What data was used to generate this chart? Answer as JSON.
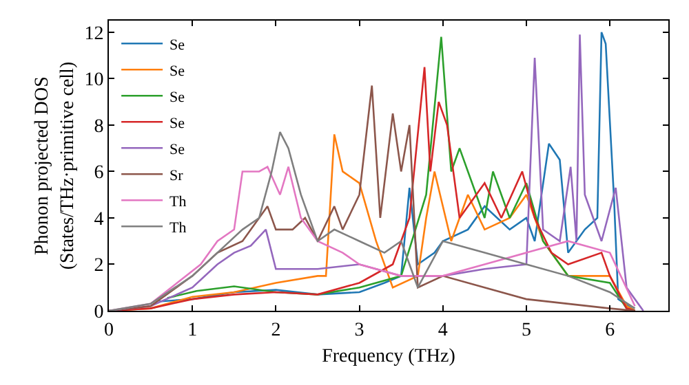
{
  "chart_data": {
    "type": "line",
    "xlabel": "Frequency (THz)",
    "ylabel": "Phonon projected DOS\n(States/THz·primitive cell)",
    "xlim": [
      0,
      6.7
    ],
    "ylim": [
      0,
      12.5
    ],
    "xticks": [
      0,
      1,
      2,
      3,
      4,
      5,
      6
    ],
    "yticks": [
      0,
      2,
      4,
      6,
      8,
      10,
      12
    ],
    "legend": "top left",
    "marker": "none",
    "line_style": "solid",
    "series": [
      {
        "name": "Se",
        "color": "#1f77b4",
        "x": [
          0.6,
          1.0,
          1.5,
          2.0,
          2.5,
          3.0,
          3.3,
          3.5,
          3.6,
          3.7,
          3.9,
          4.0,
          4.3,
          4.5,
          4.8,
          5.0,
          5.1,
          5.27,
          5.4,
          5.5,
          5.7,
          5.85,
          5.9,
          5.95,
          6.05,
          6.1,
          6.3
        ],
        "values": [
          0.4,
          0.5,
          0.8,
          0.9,
          0.7,
          0.8,
          1.2,
          1.5,
          5.3,
          2.0,
          2.5,
          3.0,
          3.5,
          4.5,
          3.5,
          4.0,
          3.0,
          7.2,
          6.5,
          2.5,
          3.5,
          4.0,
          12.0,
          11.5,
          4.8,
          0.5,
          0
        ]
      },
      {
        "name": "Se",
        "color": "#ff7f0e",
        "x": [
          0,
          0.5,
          1.0,
          1.5,
          2.0,
          2.5,
          2.6,
          2.7,
          2.8,
          3.0,
          3.2,
          3.4,
          3.7,
          3.8,
          3.9,
          4.1,
          4.3,
          4.5,
          4.8,
          5.0,
          5.2,
          5.5,
          6.0,
          6.2,
          6.3
        ],
        "values": [
          0,
          0.1,
          0.6,
          0.8,
          1.2,
          1.5,
          1.5,
          7.6,
          6.0,
          5.5,
          3.0,
          1.0,
          1.5,
          4.0,
          6.0,
          3.0,
          5.0,
          3.5,
          4.0,
          5.0,
          3.0,
          1.5,
          1.5,
          0.2,
          0
        ]
      },
      {
        "name": "Se",
        "color": "#2ca02c",
        "x": [
          0.7,
          1.05,
          1.5,
          2.0,
          2.5,
          3.0,
          3.5,
          3.8,
          3.98,
          4.1,
          4.2,
          4.5,
          4.6,
          4.8,
          5.0,
          5.2,
          5.5,
          6.0,
          6.2,
          6.3
        ],
        "values": [
          0.55,
          0.85,
          1.05,
          0.8,
          0.7,
          1.0,
          1.5,
          5.0,
          11.8,
          6.0,
          7.0,
          4.0,
          6.0,
          4.0,
          5.5,
          3.0,
          1.5,
          1.2,
          0.1,
          0
        ]
      },
      {
        "name": "Se",
        "color": "#d62728",
        "x": [
          0,
          0.5,
          1.0,
          1.5,
          2.0,
          2.5,
          3.0,
          3.4,
          3.6,
          3.78,
          3.85,
          3.95,
          4.05,
          4.2,
          4.5,
          4.7,
          4.95,
          5.1,
          5.3,
          5.5,
          5.9,
          6.0,
          6.2,
          6.3
        ],
        "values": [
          0,
          0.1,
          0.5,
          0.7,
          0.8,
          0.7,
          1.2,
          2.0,
          4.0,
          10.5,
          6.0,
          9.0,
          8.0,
          4.0,
          5.5,
          4.0,
          6.0,
          4.0,
          2.5,
          2.0,
          2.5,
          1.5,
          0.1,
          0
        ]
      },
      {
        "name": "Se",
        "color": "#9467bd",
        "x": [
          0,
          0.5,
          1.0,
          1.3,
          1.5,
          1.7,
          1.88,
          2.0,
          2.5,
          3.0,
          3.5,
          4.0,
          4.5,
          5.0,
          5.1,
          5.2,
          5.4,
          5.53,
          5.6,
          5.64,
          5.7,
          5.9,
          6.07,
          6.2,
          6.4
        ],
        "values": [
          0,
          0.2,
          1.0,
          2.0,
          2.5,
          2.8,
          3.5,
          1.8,
          1.8,
          2.0,
          1.5,
          1.5,
          1.8,
          2.0,
          10.9,
          3.5,
          3.0,
          6.2,
          3.0,
          11.9,
          5.0,
          3.0,
          5.3,
          1.0,
          0
        ]
      },
      {
        "name": "Sr",
        "color": "#8c564b",
        "x": [
          0,
          0.5,
          1.0,
          1.3,
          1.6,
          1.9,
          2.0,
          2.2,
          2.35,
          2.5,
          2.7,
          2.8,
          3.0,
          3.15,
          3.25,
          3.4,
          3.5,
          3.6,
          3.7,
          4.0,
          4.5,
          5.0,
          5.5,
          6.0,
          6.3
        ],
        "values": [
          0,
          0.2,
          1.5,
          2.5,
          3.0,
          4.5,
          3.5,
          3.5,
          4.0,
          3.0,
          4.5,
          3.5,
          5.0,
          9.7,
          4.0,
          8.5,
          6.0,
          8.0,
          1.0,
          1.5,
          1.0,
          0.5,
          0.3,
          0.1,
          0
        ]
      },
      {
        "name": "Th",
        "color": "#e377c2",
        "x": [
          0,
          0.5,
          1.1,
          1.3,
          1.5,
          1.6,
          1.8,
          1.9,
          2.05,
          2.15,
          2.3,
          2.5,
          2.8,
          3.0,
          3.5,
          4.0,
          4.5,
          5.0,
          5.5,
          6.0,
          6.3
        ],
        "values": [
          0,
          0.3,
          2.0,
          3.0,
          3.5,
          6.0,
          6.0,
          6.2,
          5.0,
          6.2,
          4.0,
          3.0,
          2.5,
          2.0,
          1.5,
          1.5,
          2.0,
          2.5,
          3.0,
          2.5,
          0.2
        ]
      },
      {
        "name": "Th",
        "color": "#7f7f7f",
        "x": [
          0,
          0.5,
          1.0,
          1.3,
          1.6,
          1.8,
          1.95,
          2.05,
          2.15,
          2.3,
          2.5,
          2.7,
          3.0,
          3.3,
          3.5,
          3.7,
          4.0,
          4.5,
          5.0,
          5.5,
          6.0,
          6.3
        ],
        "values": [
          0,
          0.3,
          1.5,
          2.5,
          3.5,
          4.0,
          6.0,
          7.7,
          7.0,
          5.0,
          3.0,
          3.5,
          3.0,
          2.5,
          3.0,
          1.0,
          3.0,
          2.5,
          2.0,
          1.5,
          0.8,
          0.1
        ]
      }
    ]
  }
}
